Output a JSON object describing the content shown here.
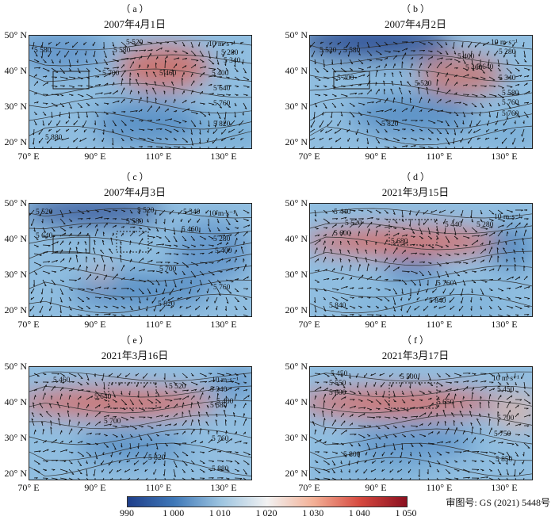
{
  "panels": [
    {
      "label": "（ a ）",
      "title": "2007年4月1日",
      "labels": [
        {
          "t": "5 580"
        },
        {
          "t": "5 580"
        },
        {
          "t": "5 520"
        },
        {
          "t": "10 m·s⁻¹"
        },
        {
          "t": "5 280"
        },
        {
          "t": "5 340"
        },
        {
          "t": "5 700"
        },
        {
          "t": "5 460"
        },
        {
          "t": "5 400"
        },
        {
          "t": "5 640"
        },
        {
          "t": "5 760"
        },
        {
          "t": "5 820"
        },
        {
          "t": "5 880"
        }
      ]
    },
    {
      "label": "（ b ）",
      "title": "2007年4月2日",
      "labels": [
        {
          "t": "5 520"
        },
        {
          "t": "5 580"
        },
        {
          "t": "10 m·s⁻¹"
        },
        {
          "t": "5 400"
        },
        {
          "t": "5 280"
        },
        {
          "t": "5 640"
        },
        {
          "t": "5 460"
        },
        {
          "t": "5 700"
        },
        {
          "t": "5 340"
        },
        {
          "t": "5 520"
        },
        {
          "t": "5 580"
        },
        {
          "t": "5 760"
        },
        {
          "t": "5 760"
        },
        {
          "t": "5 820"
        }
      ]
    },
    {
      "label": "（ c ）",
      "title": "2007年4月3日",
      "labels": [
        {
          "t": "5 520"
        },
        {
          "t": "5 520"
        },
        {
          "t": "5 340"
        },
        {
          "t": "10 m·s⁻¹"
        },
        {
          "t": "5 580"
        },
        {
          "t": "5 460"
        },
        {
          "t": "5 640"
        },
        {
          "t": "5 280"
        },
        {
          "t": "5 400"
        },
        {
          "t": "5 700"
        },
        {
          "t": "5 760"
        },
        {
          "t": "5 820"
        }
      ]
    },
    {
      "label": "（ d ）",
      "title": "2021年3月15日",
      "labels": [
        {
          "t": "5 440"
        },
        {
          "t": "5 520"
        },
        {
          "t": "10 m·s⁻¹"
        },
        {
          "t": "5 440"
        },
        {
          "t": "5 280"
        },
        {
          "t": "5 600"
        },
        {
          "t": "5 680"
        },
        {
          "t": "5 760"
        },
        {
          "t": "5 840"
        },
        {
          "t": "5 840"
        }
      ]
    },
    {
      "label": "（ e ）",
      "title": "2021年3月16日",
      "labels": [
        {
          "t": "5 460"
        },
        {
          "t": "5 520"
        },
        {
          "t": "10 m·s⁻¹"
        },
        {
          "t": "5 340"
        },
        {
          "t": "5 640"
        },
        {
          "t": "5 400"
        },
        {
          "t": "5 580"
        },
        {
          "t": "5 700"
        },
        {
          "t": "5 760"
        },
        {
          "t": "5 820"
        },
        {
          "t": "5 880"
        }
      ]
    },
    {
      "label": "（ f ）",
      "title": "2021年3月17日",
      "labels": [
        {
          "t": "5 450"
        },
        {
          "t": "5 550"
        },
        {
          "t": "5 500"
        },
        {
          "t": "10 m·s⁻¹"
        },
        {
          "t": "5 450"
        },
        {
          "t": "5 600"
        },
        {
          "t": "5 650"
        },
        {
          "t": "5 700"
        },
        {
          "t": "5 750"
        },
        {
          "t": "5 800"
        },
        {
          "t": "5 850"
        }
      ]
    }
  ],
  "axes": {
    "lat": [
      "50° N",
      "40° N",
      "30° N",
      "20° N"
    ],
    "lon": [
      "70° E",
      "90° E",
      "110° E",
      "130° E"
    ]
  },
  "colorbar": {
    "ticks": [
      "990",
      "1 000",
      "1 010",
      "1 020",
      "1 030",
      "1 040",
      "1 050"
    ],
    "colors": [
      "#1f3f8a",
      "#3f78b8",
      "#9cc4e0",
      "#f2f2f2",
      "#f3b096",
      "#d6493f",
      "#8b1020"
    ]
  },
  "map_approval": "审图号: GS (2021) 5448号"
}
